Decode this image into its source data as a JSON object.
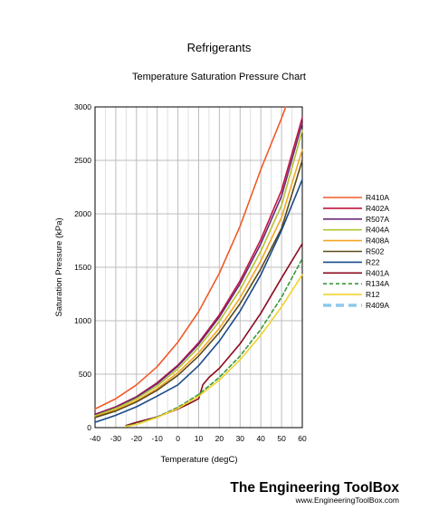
{
  "chart_data": {
    "type": "line",
    "title": "Refrigerants",
    "subtitle": "Temperature Saturation Pressure Chart",
    "xlabel": "Temperature  (degC)",
    "ylabel": "Saturation Pressure (kPa)",
    "xlim": [
      -40,
      60
    ],
    "ylim": [
      0,
      3000
    ],
    "xticks": [
      -40,
      -30,
      -20,
      -10,
      0,
      10,
      20,
      30,
      40,
      50,
      60
    ],
    "yticks": [
      0,
      500,
      1000,
      1500,
      2000,
      2500,
      3000
    ],
    "grid": true,
    "legend_position": "right",
    "series": [
      {
        "name": "R410A",
        "color": "#f05a28",
        "dash": "",
        "x": [
          -40,
          -30,
          -20,
          -10,
          0,
          10,
          20,
          30,
          40,
          50,
          52
        ],
        "y": [
          175,
          270,
          400,
          570,
          800,
          1085,
          1445,
          1885,
          2415,
          2895,
          3000
        ]
      },
      {
        "name": "R402A",
        "color": "#c0143c",
        "dash": "",
        "x": [
          -40,
          -30,
          -20,
          -10,
          0,
          10,
          20,
          30,
          40,
          50,
          60
        ],
        "y": [
          125,
          195,
          290,
          420,
          585,
          795,
          1055,
          1375,
          1760,
          2220,
          2900
        ]
      },
      {
        "name": "R507A",
        "color": "#6a2a7a",
        "dash": "",
        "x": [
          -40,
          -30,
          -20,
          -10,
          0,
          10,
          20,
          30,
          40,
          50,
          60
        ],
        "y": [
          120,
          190,
          285,
          410,
          575,
          780,
          1035,
          1345,
          1720,
          2165,
          2850
        ]
      },
      {
        "name": "R404A",
        "color": "#b3c430",
        "dash": "",
        "x": [
          -40,
          -30,
          -20,
          -10,
          0,
          10,
          20,
          30,
          40,
          50,
          60
        ],
        "y": [
          110,
          180,
          270,
          390,
          550,
          750,
          995,
          1290,
          1650,
          2080,
          2780
        ]
      },
      {
        "name": "R408A",
        "color": "#f5a623",
        "dash": "",
        "x": [
          -40,
          -30,
          -20,
          -10,
          0,
          10,
          20,
          30,
          40,
          50,
          60
        ],
        "y": [
          100,
          165,
          250,
          365,
          515,
          700,
          930,
          1215,
          1560,
          1965,
          2600
        ]
      },
      {
        "name": "R502",
        "color": "#5a4a1a",
        "dash": "",
        "x": [
          -40,
          -30,
          -20,
          -10,
          0,
          10,
          20,
          30,
          40,
          50,
          60
        ],
        "y": [
          95,
          155,
          240,
          350,
          490,
          670,
          890,
          1160,
          1485,
          1865,
          2500
        ]
      },
      {
        "name": "R22",
        "color": "#1a4a8a",
        "dash": "",
        "x": [
          -40,
          -30,
          -20,
          -10,
          0,
          10,
          20,
          30,
          40,
          50,
          60
        ],
        "y": [
          50,
          115,
          195,
          295,
          400,
          580,
          810,
          1090,
          1430,
          1845,
          2320
        ]
      },
      {
        "name": "R401A",
        "color": "#8b0a1e",
        "dash": "",
        "x": [
          -25,
          -20,
          -10,
          0,
          5,
          10,
          12,
          15,
          20,
          30,
          40,
          50,
          60
        ],
        "y": [
          20,
          50,
          100,
          175,
          220,
          270,
          400,
          470,
          555,
          785,
          1070,
          1400,
          1720
        ]
      },
      {
        "name": "R134A",
        "color": "#3a9a3a",
        "dash": "4,3",
        "x": [
          -25,
          -20,
          -10,
          0,
          10,
          20,
          30,
          40,
          50,
          60
        ],
        "y": [
          15,
          35,
          100,
          190,
          310,
          470,
          670,
          920,
          1220,
          1580
        ]
      },
      {
        "name": "R12",
        "color": "#f2d22e",
        "dash": "",
        "x": [
          -25,
          -20,
          -10,
          0,
          10,
          20,
          30,
          40,
          50,
          60
        ],
        "y": [
          10,
          30,
          95,
          180,
          295,
          445,
          635,
          865,
          1130,
          1430
        ]
      },
      {
        "name": "R409A",
        "color": "#8ec8ec",
        "dash": "9,5",
        "x": [],
        "y": []
      }
    ]
  },
  "branding": {
    "name": "The Engineering ToolBox",
    "url": "www.EngineeringToolBox.com"
  }
}
